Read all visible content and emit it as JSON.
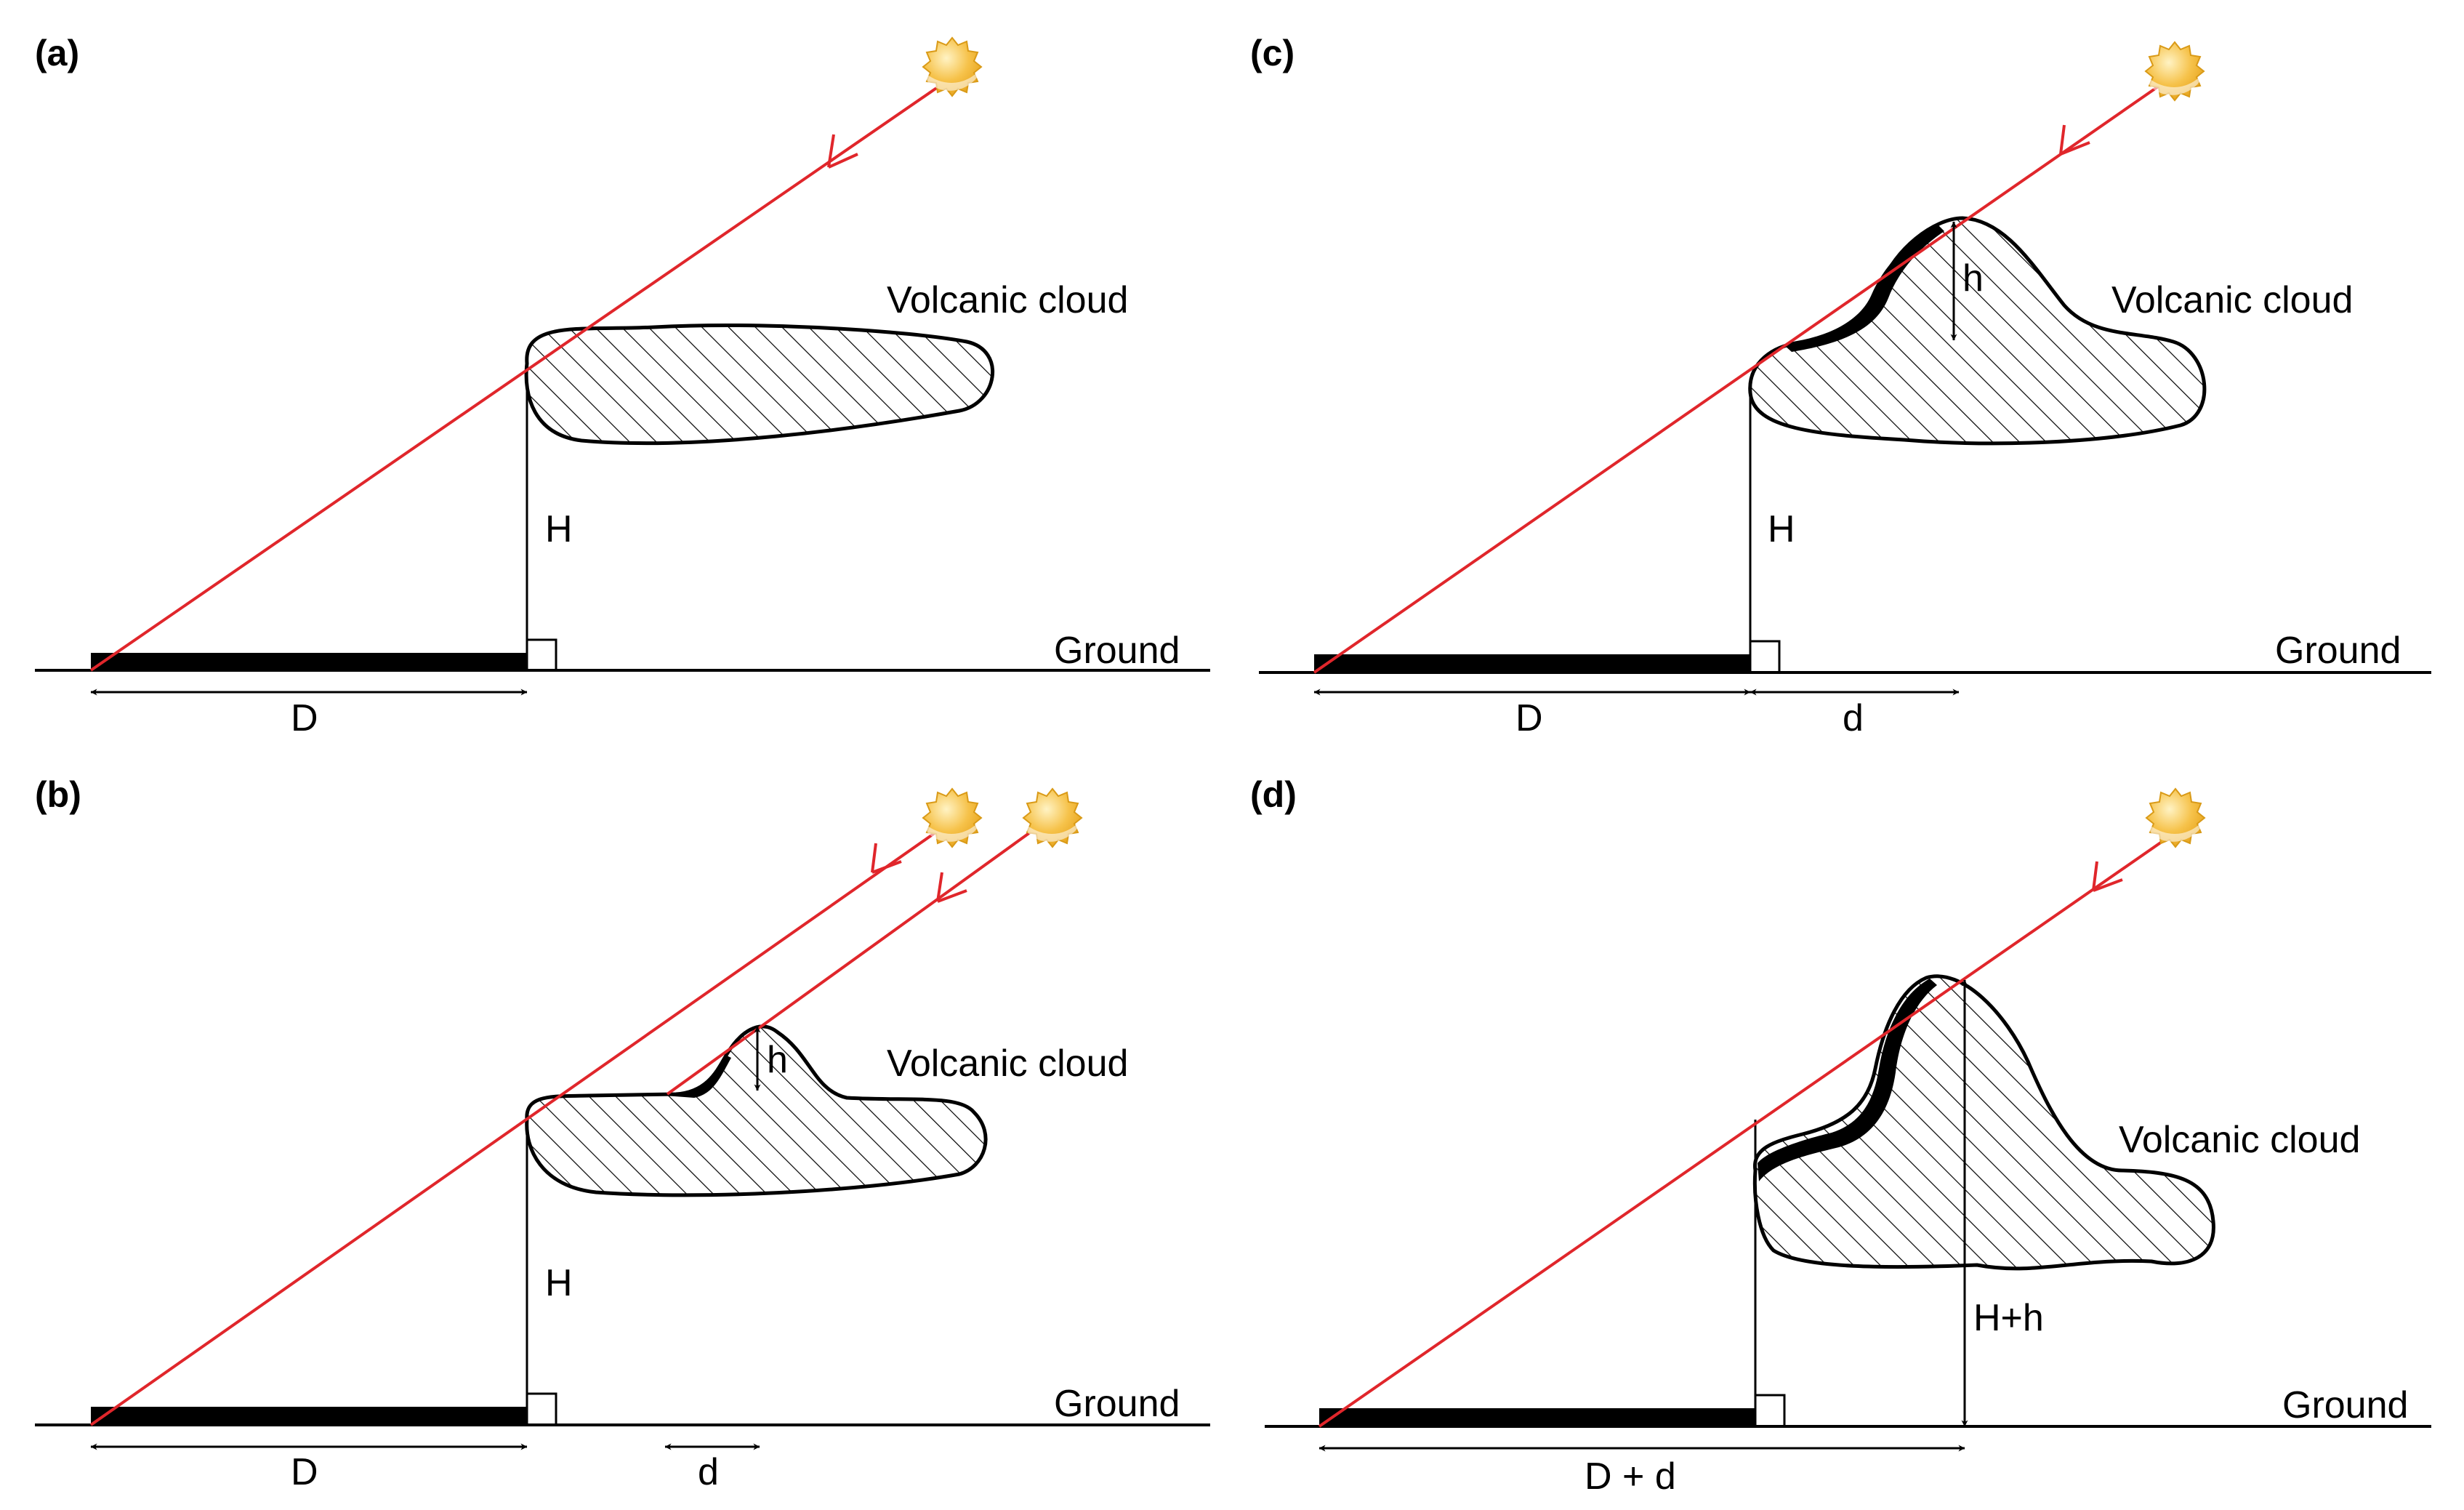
{
  "colors": {
    "sun_ray": "#e0262b",
    "sun_fill": "#f6c24a",
    "sun_highlight": "#fff3c4",
    "outline": "#000000",
    "background": "#ffffff"
  },
  "panels": [
    {
      "id": "a",
      "label": "(a)",
      "cloud_label": "Volcanic cloud",
      "height_label": "H",
      "ground_label": "Ground",
      "distance_label": "D"
    },
    {
      "id": "b",
      "label": "(b)",
      "cloud_label": "Volcanic cloud",
      "height_label": "H",
      "ground_label": "Ground",
      "distance_label": "D",
      "small_height_label": "h",
      "small_distance_label": "d"
    },
    {
      "id": "c",
      "label": "(c)",
      "cloud_label": "Volcanic cloud",
      "height_label": "H",
      "ground_label": "Ground",
      "distance_label": "D",
      "small_height_label": "h",
      "small_distance_label": "d"
    },
    {
      "id": "d",
      "label": "(d)",
      "cloud_label": "Volcanic cloud",
      "height_label": "H+h",
      "ground_label": "Ground",
      "distance_label": "D + d"
    }
  ],
  "icons": {
    "sun": "sun-icon"
  }
}
